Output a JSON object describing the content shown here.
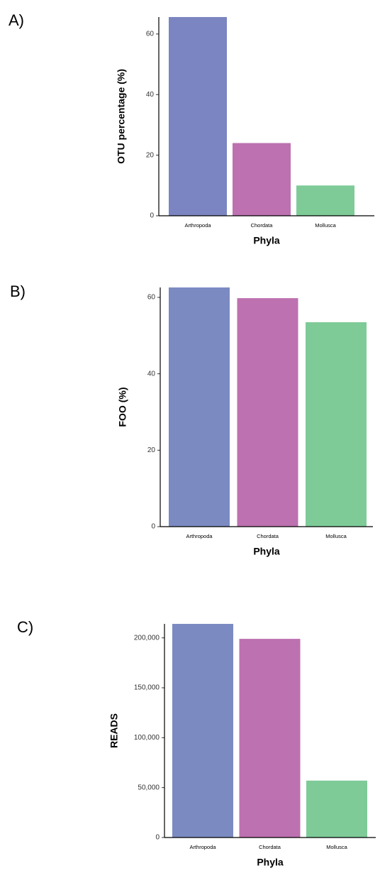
{
  "chart_data": [
    {
      "type": "bar",
      "label": "A)",
      "categories": [
        "Arthropoda",
        "Chordata",
        "Mollusca"
      ],
      "values": [
        65.6,
        24,
        10
      ],
      "colors": [
        "#7b85c2",
        "#bd71b0",
        "#7ecb98"
      ],
      "ylabel": "OTU percentage (%)",
      "xlabel": "Phyla",
      "ylim": [
        0,
        65.6
      ],
      "yticks": [
        0,
        20,
        40,
        60
      ]
    },
    {
      "type": "bar",
      "label": "B)",
      "categories": [
        "Arthropoda",
        "Chordata",
        "Mollusca"
      ],
      "values": [
        62.6,
        59.8,
        53.5
      ],
      "colors": [
        "#7b8bc2",
        "#bd71b0",
        "#7ecb98"
      ],
      "ylabel": "FOO (%)",
      "xlabel": "Phyla",
      "ylim": [
        0,
        62.6
      ],
      "yticks": [
        0,
        20,
        40,
        60
      ]
    },
    {
      "type": "bar",
      "label": "C)",
      "categories": [
        "Arthropoda",
        "Chordata",
        "Mollusca"
      ],
      "values": [
        214000,
        199000,
        57000
      ],
      "colors": [
        "#7b8bc2",
        "#bd71b0",
        "#7ecb98"
      ],
      "ylabel": "READS",
      "xlabel": "Phyla",
      "ylim": [
        0,
        214000
      ],
      "yticks": [
        0,
        {
          "value": 50000,
          "label": "50,000"
        },
        {
          "value": 100000,
          "label": "100,000"
        },
        {
          "value": 150000,
          "label": "150,000"
        },
        {
          "value": 200000,
          "label": "200,000"
        }
      ]
    }
  ]
}
